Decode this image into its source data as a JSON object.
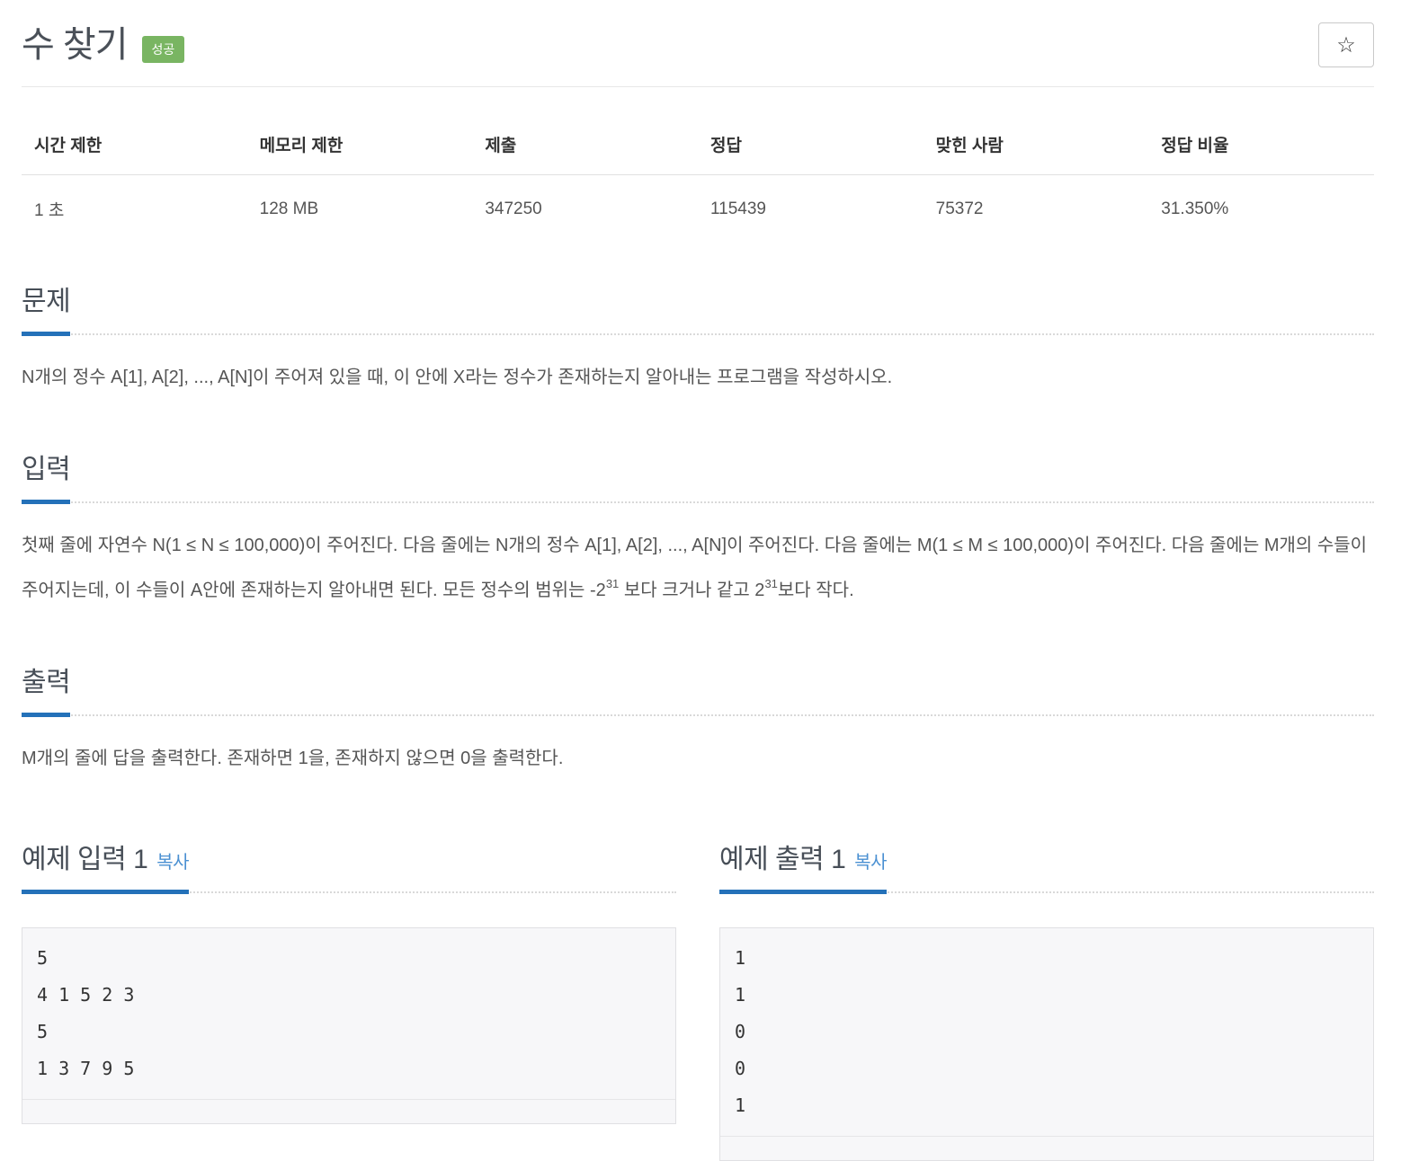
{
  "header": {
    "title": "수 찾기",
    "status_badge": "성공",
    "star_icon": "☆"
  },
  "stats": {
    "headers": [
      "시간 제한",
      "메모리 제한",
      "제출",
      "정답",
      "맞힌 사람",
      "정답 비율"
    ],
    "values": [
      "1 초",
      "128 MB",
      "347250",
      "115439",
      "75372",
      "31.350%"
    ]
  },
  "sections": {
    "problem": {
      "title": "문제",
      "body": "N개의 정수 A[1], A[2], ..., A[N]이 주어져 있을 때, 이 안에 X라는 정수가 존재하는지 알아내는 프로그램을 작성하시오."
    },
    "input": {
      "title": "입력",
      "body_part1": "첫째 줄에 자연수 N(1 ≤ N ≤ 100,000)이 주어진다. 다음 줄에는 N개의 정수 A[1], A[2], ..., A[N]이 주어진다. 다음 줄에는 M(1 ≤ M ≤ 100,000)이 주어진다. 다음 줄에는 M개의 수들이 주어지는데, 이 수들이 A안에 존재하는지 알아내면 된다. 모든 정수의 범위는 -2",
      "sup1": "31",
      "body_part2": " 보다 크거나 같고 2",
      "sup2": "31",
      "body_part3": "보다 작다."
    },
    "output": {
      "title": "출력",
      "body": "M개의 줄에 답을 출력한다. 존재하면 1을, 존재하지 않으면 0을 출력한다."
    }
  },
  "samples": {
    "input": {
      "title": "예제 입력 1",
      "copy_label": "복사",
      "data": "5\n4 1 5 2 3\n5\n1 3 7 9 5"
    },
    "output": {
      "title": "예제 출력 1",
      "copy_label": "복사",
      "data": "1\n1\n0\n0\n1"
    }
  },
  "colors": {
    "success_green": "#79b562",
    "heading_underline_blue": "#2471b9",
    "copy_link_blue": "#4a90d2",
    "code_background": "#f7f7f9"
  }
}
